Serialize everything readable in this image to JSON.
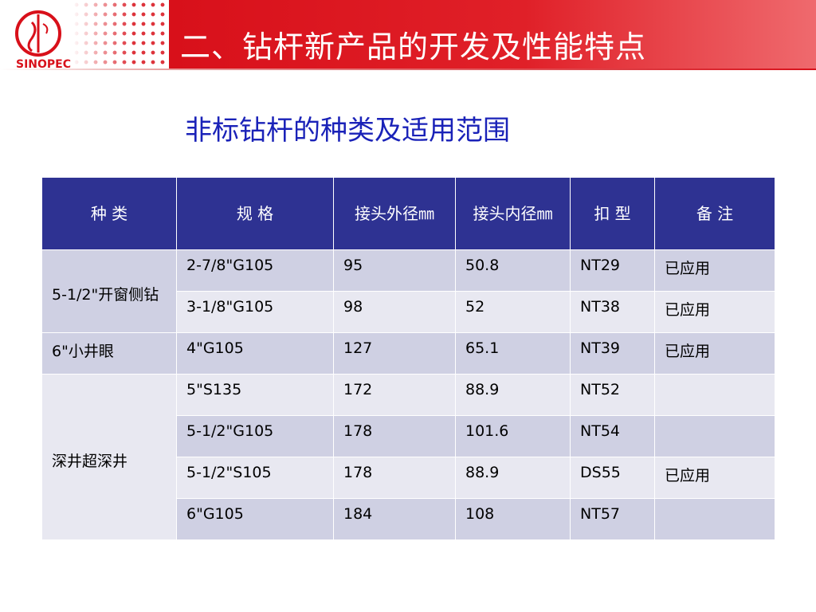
{
  "logo": {
    "text": "SINOPEC",
    "icon": "sinopec-logo",
    "color": "#d8101a"
  },
  "header": {
    "title": "二、钻杆新产品的开发及性能特点",
    "band_color": "#d8101a"
  },
  "subtitle": "非标钻杆的种类及适用范围",
  "table": {
    "header_color": "#2e3292",
    "columns": [
      "种 类",
      "规 格",
      "接头外径㎜",
      "接头内径㎜",
      "扣 型",
      "备 注"
    ],
    "groups": [
      {
        "category": "5-1/2\"开窗侧钻",
        "rows": [
          {
            "spec": "2-7/8\"G105",
            "od": "95",
            "id": "50.8",
            "thread": "NT29",
            "note": "已应用"
          },
          {
            "spec": "3-1/8\"G105",
            "od": "98",
            "id": "52",
            "thread": "NT38",
            "note": "已应用"
          }
        ]
      },
      {
        "category": "6\"小井眼",
        "rows": [
          {
            "spec": "4\"G105",
            "od": "127",
            "id": "65.1",
            "thread": "NT39",
            "note": "已应用"
          }
        ]
      },
      {
        "category": "深井超深井",
        "rows": [
          {
            "spec": "5\"S135",
            "od": "172",
            "id": "88.9",
            "thread": "NT52",
            "note": ""
          },
          {
            "spec": "5-1/2\"G105",
            "od": "178",
            "id": "101.6",
            "thread": "NT54",
            "note": ""
          },
          {
            "spec": "5-1/2\"S105",
            "od": "178",
            "id": "88.9",
            "thread": "DS55",
            "note": "已应用"
          },
          {
            "spec": "6\"G105",
            "od": "184",
            "id": "108",
            "thread": "NT57",
            "note": ""
          }
        ]
      }
    ]
  }
}
